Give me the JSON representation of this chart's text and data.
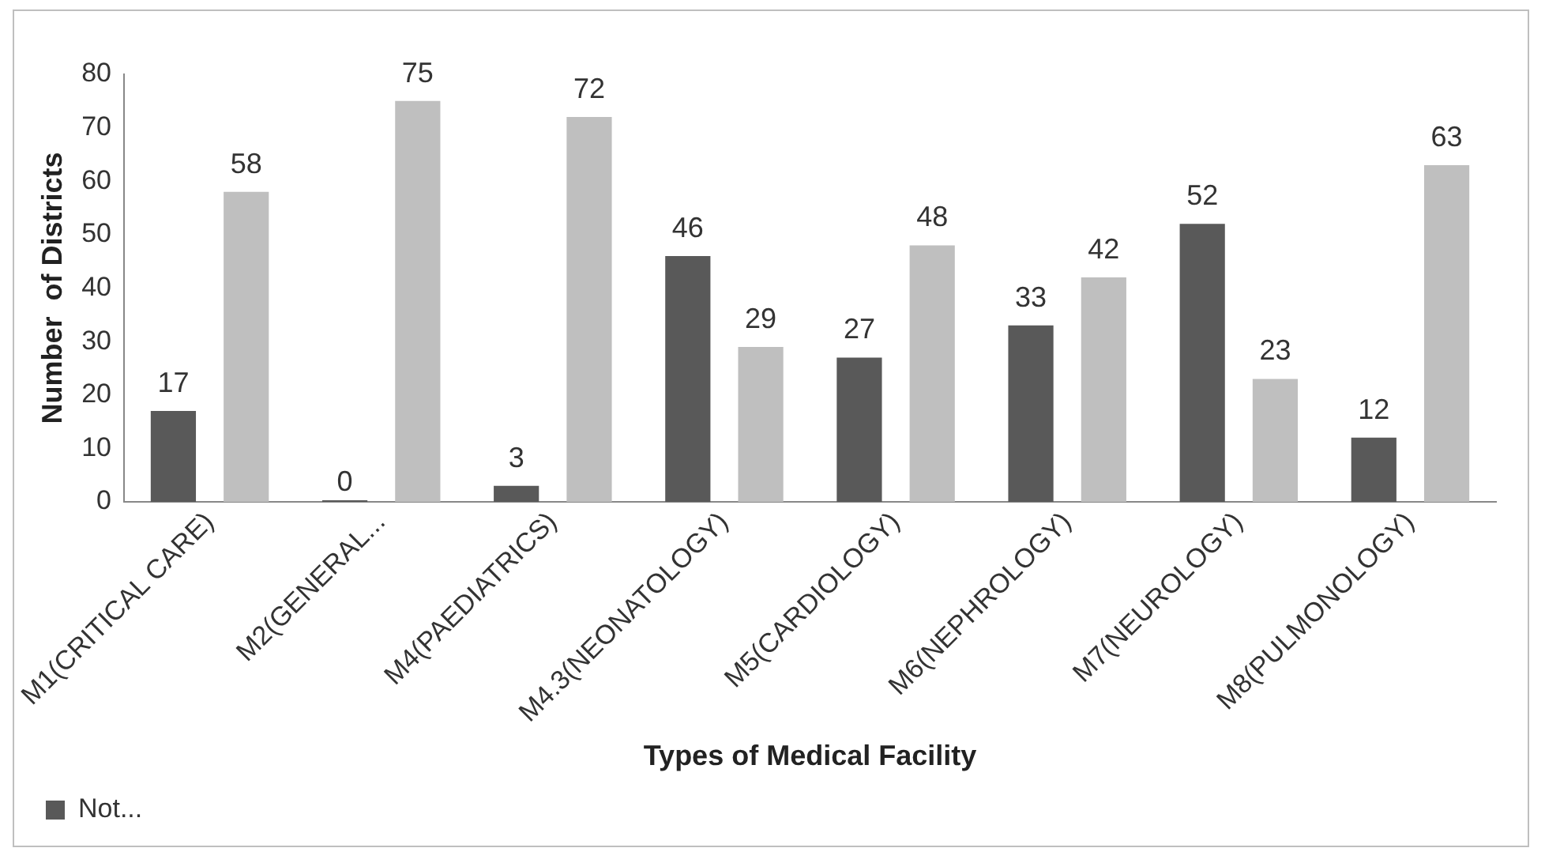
{
  "chart_data": {
    "type": "bar",
    "xlabel": "Types of Medical Facility",
    "ylabel": "Number  of Districts",
    "categories": [
      "M1(CRITICAL CARE)",
      "M2(GENERAL...",
      "M4(PAEDIATRICS)",
      "M4.3(NEONATOLOGY)",
      "M5(CARDIOLOGY)",
      "M6(NEPHROLOGY)",
      "M7(NEUROLOGY)",
      "M8(PULMONOLOGY)"
    ],
    "series": [
      {
        "name": "Not...",
        "color": "#595959",
        "values": [
          17,
          0,
          3,
          46,
          27,
          33,
          52,
          12
        ]
      },
      {
        "color": "#bfbfbf",
        "values": [
          58,
          75,
          72,
          29,
          48,
          42,
          23,
          63
        ]
      }
    ],
    "ylim": [
      0,
      80
    ],
    "yticks": [
      0,
      10,
      20,
      30,
      40,
      50,
      60,
      70,
      80
    ],
    "grid": false,
    "legend": "bottom left",
    "data_labels": true
  }
}
